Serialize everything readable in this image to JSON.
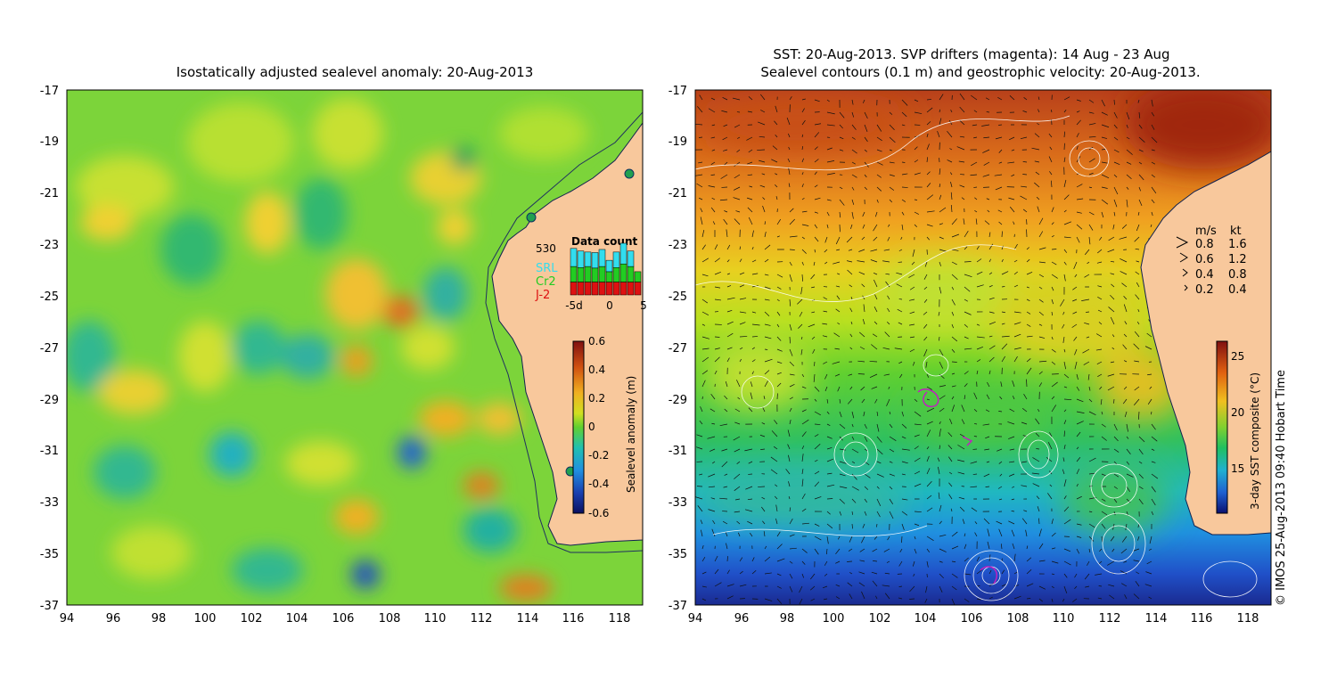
{
  "left_panel": {
    "title": "Isostatically adjusted sealevel anomaly: 20-Aug-2013",
    "colorbar": {
      "label": "Sealevel anomaly (m)",
      "ticks": [
        "0.6",
        "0.4",
        "0.2",
        "0",
        "-0.2",
        "-0.4",
        "-0.6"
      ]
    },
    "data_count": {
      "title": "Data count",
      "max_label": "530",
      "satellites": [
        {
          "name": "SRL",
          "color": "#33ddee"
        },
        {
          "name": "Cr2",
          "color": "#22cc22"
        },
        {
          "name": "J-2",
          "color": "#dd1111"
        }
      ],
      "xticks": [
        "-5d",
        "0",
        "5"
      ],
      "bars": [
        {
          "j2": 0.25,
          "cr2": 0.3,
          "srl": 0.35
        },
        {
          "j2": 0.25,
          "cr2": 0.28,
          "srl": 0.32
        },
        {
          "j2": 0.25,
          "cr2": 0.3,
          "srl": 0.28
        },
        {
          "j2": 0.25,
          "cr2": 0.27,
          "srl": 0.3
        },
        {
          "j2": 0.25,
          "cr2": 0.3,
          "srl": 0.33
        },
        {
          "j2": 0.25,
          "cr2": 0.2,
          "srl": 0.22
        },
        {
          "j2": 0.25,
          "cr2": 0.28,
          "srl": 0.3
        },
        {
          "j2": 0.25,
          "cr2": 0.35,
          "srl": 0.4
        },
        {
          "j2": 0.25,
          "cr2": 0.3,
          "srl": 0.3
        },
        {
          "j2": 0.25,
          "cr2": 0.2,
          "srl": 0.0
        }
      ]
    }
  },
  "right_panel": {
    "title_line1": "SST: 20-Aug-2013. SVP drifters (magenta): 14 Aug - 23 Aug",
    "title_line2": "Sealevel contours (0.1 m) and geostrophic velocity: 20-Aug-2013.",
    "colorbar": {
      "label": "3-day SST composite (°C)",
      "ticks": [
        "25",
        "20",
        "15"
      ]
    },
    "velocity_legend": {
      "header_ms": "m/s",
      "header_kt": "kt",
      "rows": [
        {
          "ms": "0.8",
          "kt": "1.6"
        },
        {
          "ms": "0.6",
          "kt": "1.2"
        },
        {
          "ms": "0.4",
          "kt": "0.8"
        },
        {
          "ms": "0.2",
          "kt": "0.4"
        }
      ]
    },
    "credit": "© IMOS 25-Aug-2013 09:40 Hobart Time"
  },
  "axes": {
    "lat_ticks": [
      "-17",
      "-19",
      "-21",
      "-23",
      "-25",
      "-27",
      "-29",
      "-31",
      "-33",
      "-35",
      "-37"
    ],
    "lon_ticks": [
      "94",
      "96",
      "98",
      "100",
      "102",
      "104",
      "106",
      "108",
      "110",
      "112",
      "114",
      "116",
      "118"
    ]
  },
  "colors": {
    "land": "#f8c89c",
    "coast": "#102050",
    "slope_contour": "#203060"
  }
}
